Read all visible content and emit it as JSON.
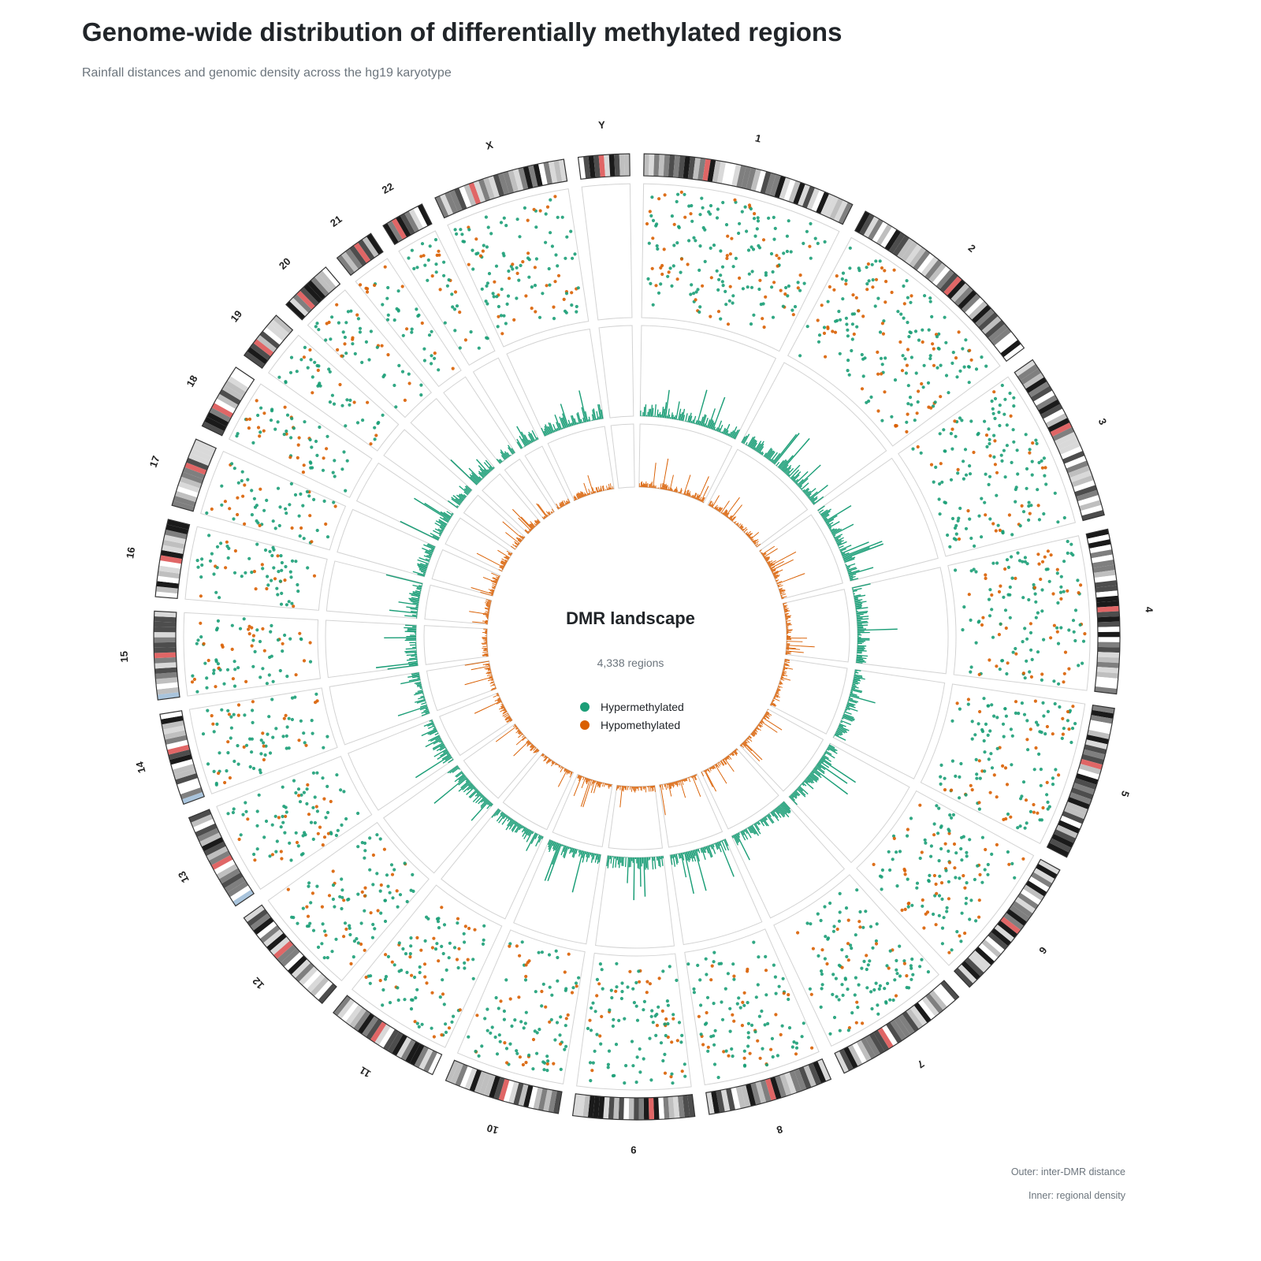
{
  "header": {
    "title": "Genome-wide distribution of differentially methylated regions",
    "subtitle": "Rainfall distances and genomic density across the hg19 karyotype"
  },
  "center": {
    "title": "DMR landscape",
    "count_text": "4,338 regions"
  },
  "footnotes": {
    "outer": "Outer: inter-DMR distance",
    "inner": "Inner: regional density"
  },
  "colors": {
    "hyper": "#1b9e77",
    "hypo": "#d95f02",
    "panel_border": "#d3d3d3",
    "band_dark": "#1a1a1a",
    "band_mid": "#7f7f7f",
    "band_light": "#d9d9d9",
    "centromere": "#e06666",
    "stalk": "#a9c4dc"
  },
  "chart_data": {
    "type": "circos",
    "assembly": "hg19",
    "total_regions": 4338,
    "legend": [
      {
        "name": "Hypermethylated",
        "color": "#1b9e77"
      },
      {
        "name": "Hypomethylated",
        "color": "#d95f02"
      }
    ],
    "tracks": [
      "ideogram",
      "rainfall (inter-DMR distance)",
      "hypermethylated density",
      "hypomethylated density"
    ],
    "chromosomes": [
      {
        "name": "1",
        "size_mb": 249.3
      },
      {
        "name": "2",
        "size_mb": 243.2
      },
      {
        "name": "3",
        "size_mb": 198.0
      },
      {
        "name": "4",
        "size_mb": 191.2
      },
      {
        "name": "5",
        "size_mb": 180.9
      },
      {
        "name": "6",
        "size_mb": 171.1
      },
      {
        "name": "7",
        "size_mb": 159.1
      },
      {
        "name": "8",
        "size_mb": 146.4
      },
      {
        "name": "9",
        "size_mb": 141.2
      },
      {
        "name": "10",
        "size_mb": 135.5
      },
      {
        "name": "11",
        "size_mb": 135.0
      },
      {
        "name": "12",
        "size_mb": 133.9
      },
      {
        "name": "13",
        "size_mb": 115.2
      },
      {
        "name": "14",
        "size_mb": 107.3
      },
      {
        "name": "15",
        "size_mb": 102.5
      },
      {
        "name": "16",
        "size_mb": 90.4
      },
      {
        "name": "17",
        "size_mb": 81.2
      },
      {
        "name": "18",
        "size_mb": 78.1
      },
      {
        "name": "19",
        "size_mb": 59.1
      },
      {
        "name": "20",
        "size_mb": 63.0
      },
      {
        "name": "21",
        "size_mb": 48.1
      },
      {
        "name": "22",
        "size_mb": 51.3
      },
      {
        "name": "X",
        "size_mb": 155.3
      },
      {
        "name": "Y",
        "size_mb": 59.4
      }
    ]
  }
}
